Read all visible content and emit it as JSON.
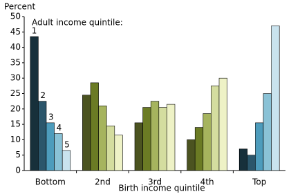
{
  "chart_data": {
    "type": "bar",
    "y_axis_label": "Percent",
    "x_axis_label": "Birth income quintile",
    "annotation": "Adult income quintile:",
    "categories": [
      "Bottom",
      "2nd",
      "3rd",
      "4th",
      "Top"
    ],
    "series": [
      {
        "name": "1",
        "colors": [
          "#17303b",
          "#4b5320",
          "#4b5320",
          "#4b5320",
          "#17303b"
        ],
        "values": [
          43.5,
          24.5,
          15.5,
          10,
          7
        ]
      },
      {
        "name": "2",
        "colors": [
          "#2b566b",
          "#6b7b24",
          "#6b7b24",
          "#6b7b24",
          "#2b566b"
        ],
        "values": [
          22.5,
          28.5,
          20.5,
          14,
          5
        ]
      },
      {
        "name": "3",
        "colors": [
          "#4d9cbc",
          "#a6b45e",
          "#a6b45e",
          "#a6b45e",
          "#4d9cbc"
        ],
        "values": [
          15.5,
          21,
          22.5,
          18.5,
          15.5
        ]
      },
      {
        "name": "4",
        "colors": [
          "#8ac2d6",
          "#d4dd9f",
          "#d4dd9f",
          "#d4dd9f",
          "#8ac2d6"
        ],
        "values": [
          12,
          14.5,
          20.5,
          27.5,
          25
        ]
      },
      {
        "name": "5",
        "colors": [
          "#c9e3ee",
          "#eef2c6",
          "#eef2c6",
          "#eef2c6",
          "#c9e3ee"
        ],
        "values": [
          6.5,
          11.5,
          21.5,
          30,
          47
        ]
      }
    ],
    "ylim": [
      0,
      50
    ],
    "yticks": [
      0,
      5,
      10,
      15,
      20,
      25,
      30,
      35,
      40,
      45,
      50
    ]
  }
}
